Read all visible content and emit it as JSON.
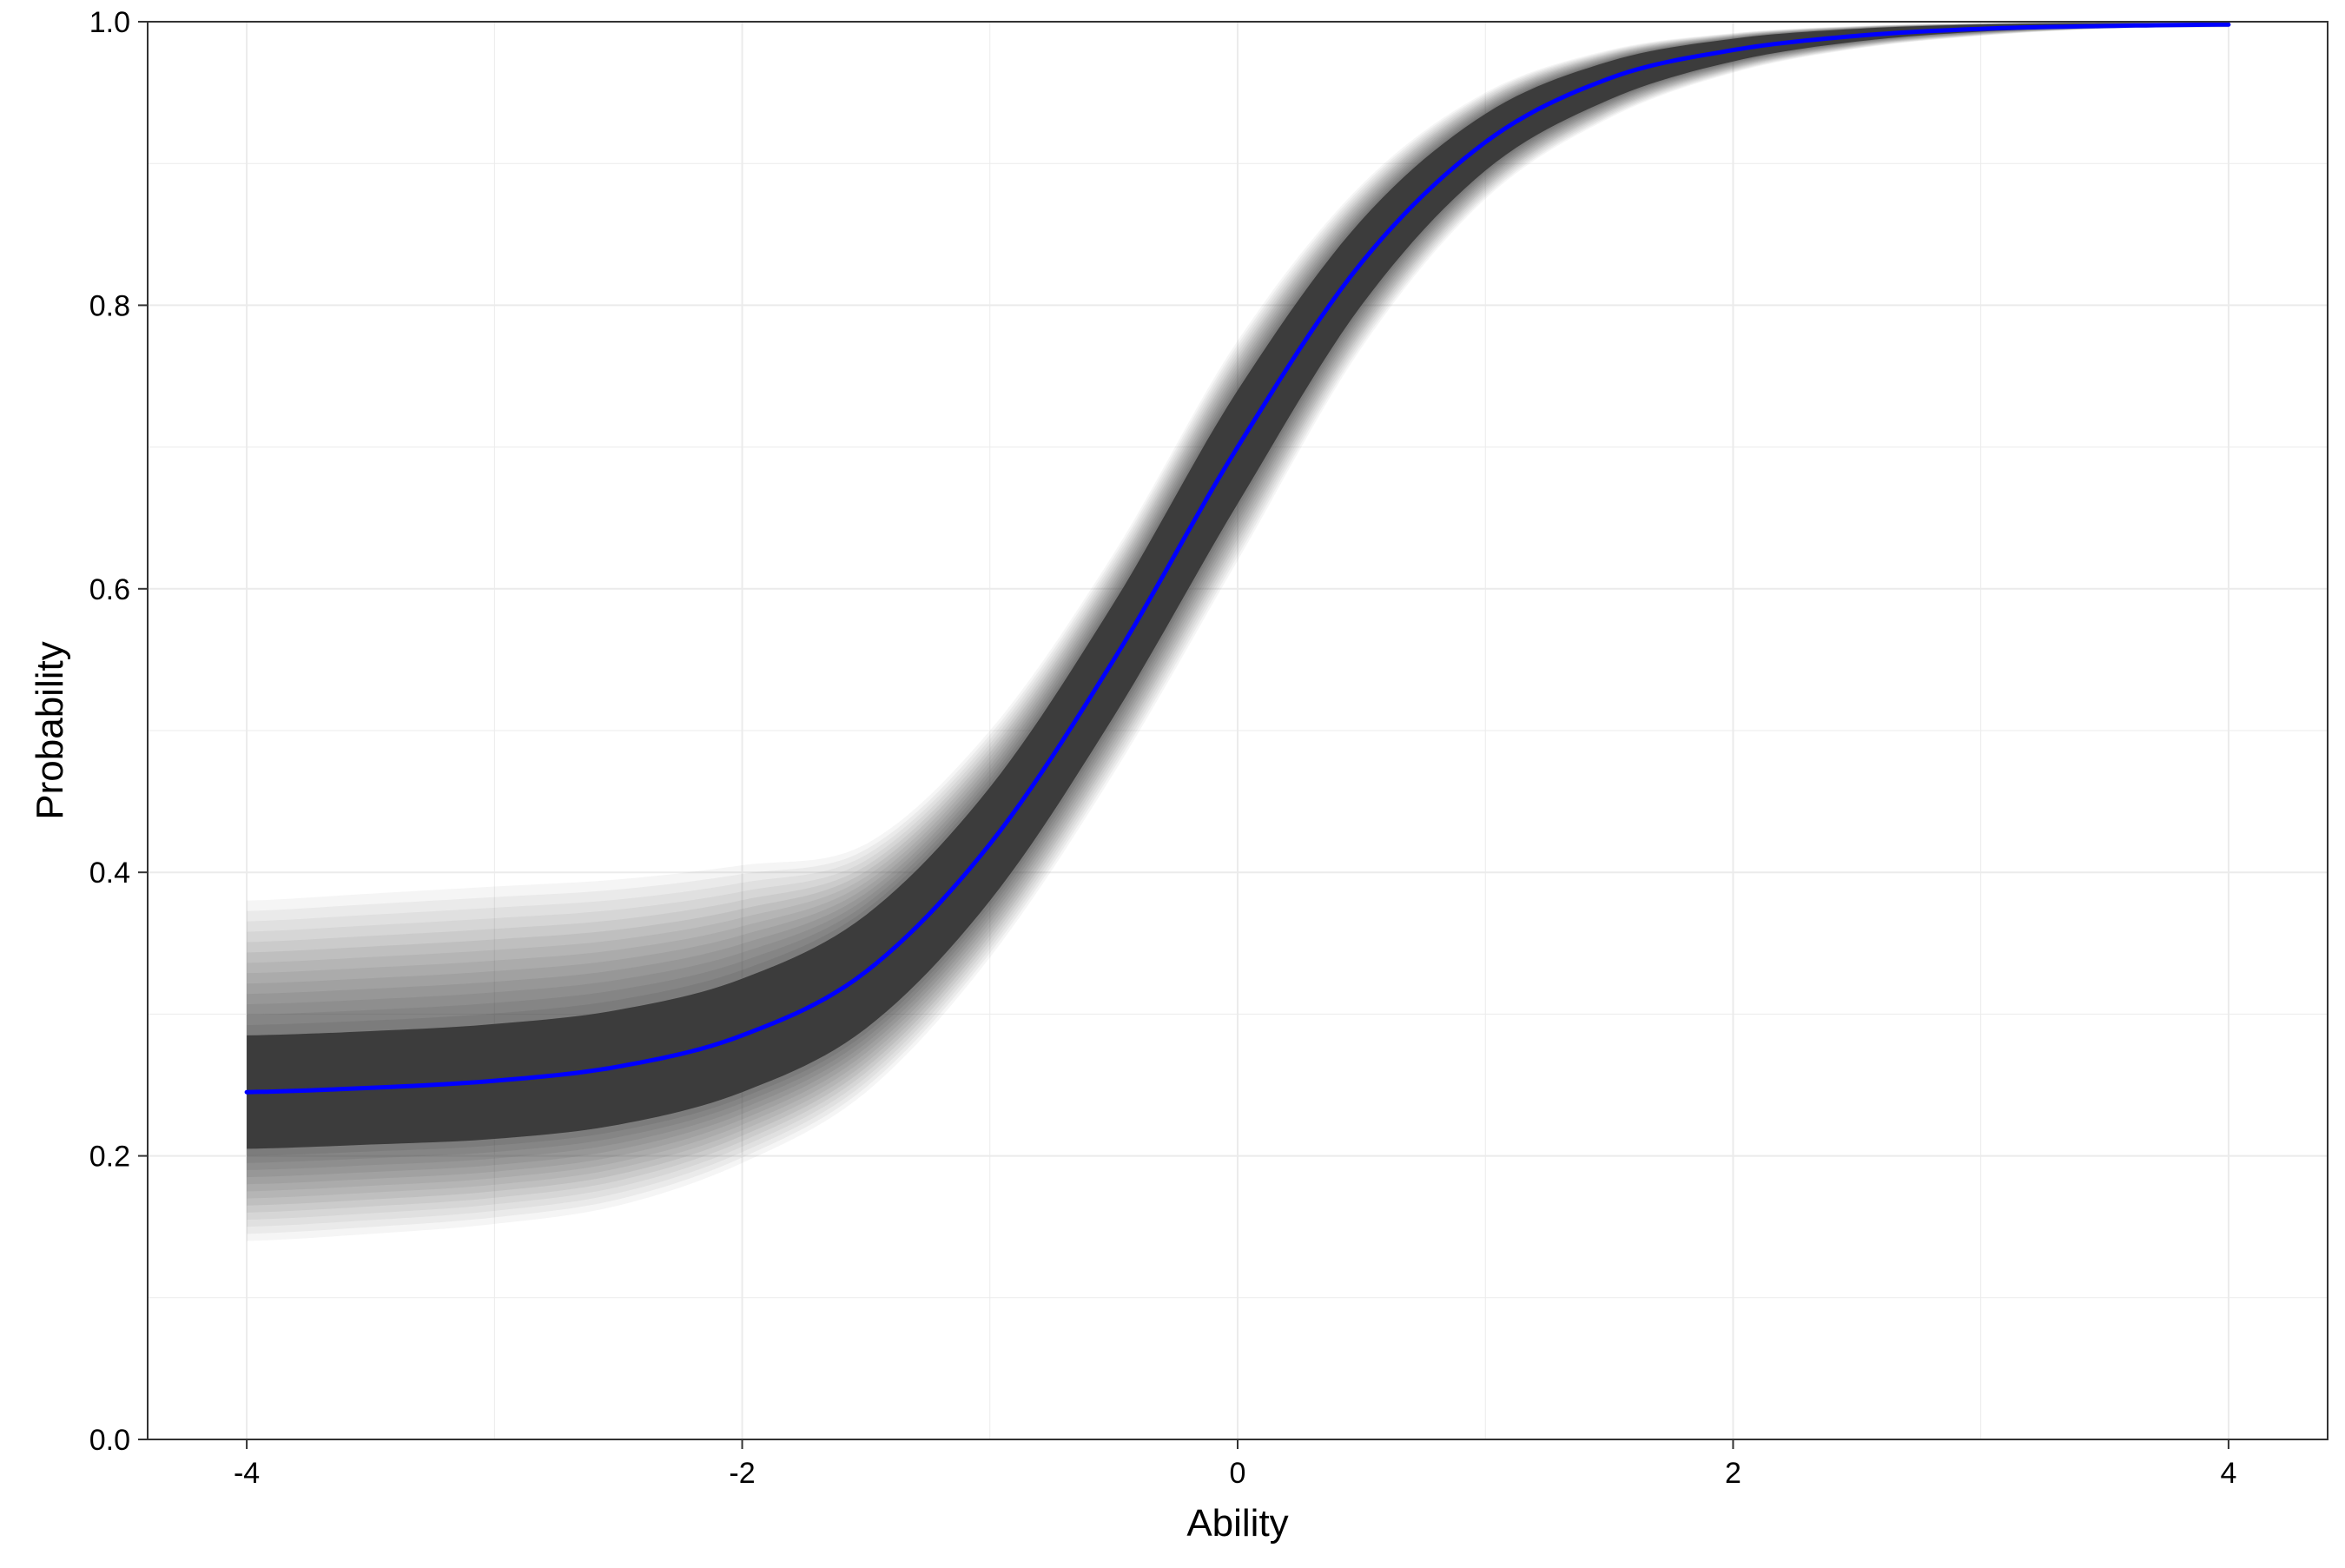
{
  "chart_data": {
    "type": "line",
    "title": "",
    "xlabel": "Ability",
    "ylabel": "Probability",
    "xlim": [
      -4.4,
      4.4
    ],
    "ylim": [
      0.0,
      1.0
    ],
    "xticks": [
      -4,
      -2,
      0,
      2,
      4
    ],
    "xtick_labels": [
      "-4",
      "-2",
      "0",
      "2",
      "4"
    ],
    "yticks": [
      0.0,
      0.2,
      0.4,
      0.6,
      0.8,
      1.0
    ],
    "ytick_labels": [
      "0.0",
      "0.2",
      "0.4",
      "0.6",
      "0.8",
      "1.0"
    ],
    "grid": true,
    "legend": "none",
    "colors": {
      "mean_curve": "#0000ff",
      "posterior_draws": "#3c3c3c",
      "grid": "#ebebeb",
      "panel_border": "#333333"
    },
    "series": [
      {
        "x": [
          -4.0,
          -3.5,
          -3.0,
          -2.5,
          -2.0,
          -1.5,
          -1.0,
          -0.5,
          0.0,
          0.5,
          1.0,
          1.5,
          2.0,
          2.5,
          3.0,
          3.5,
          4.0
        ],
        "values": [
          0.245,
          0.248,
          0.253,
          0.263,
          0.285,
          0.33,
          0.42,
          0.55,
          0.7,
          0.83,
          0.915,
          0.96,
          0.98,
          0.99,
          0.995,
          0.997,
          0.998
        ]
      }
    ],
    "band": {
      "x": [
        -4.0,
        -3.5,
        -3.0,
        -2.5,
        -2.0,
        -1.5,
        -1.0,
        -0.5,
        0.0,
        0.5,
        1.0,
        1.5,
        2.0,
        2.5,
        3.0,
        3.5,
        4.0
      ],
      "core_lower": [
        0.205,
        0.208,
        0.212,
        0.222,
        0.245,
        0.29,
        0.38,
        0.51,
        0.66,
        0.8,
        0.895,
        0.945,
        0.972,
        0.986,
        0.993,
        0.996,
        0.997
      ],
      "core_upper": [
        0.285,
        0.288,
        0.293,
        0.303,
        0.325,
        0.37,
        0.46,
        0.59,
        0.74,
        0.86,
        0.935,
        0.972,
        0.988,
        0.995,
        0.998,
        0.999,
        0.999
      ],
      "outer_lower": [
        0.14,
        0.145,
        0.152,
        0.165,
        0.195,
        0.245,
        0.34,
        0.47,
        0.62,
        0.77,
        0.875,
        0.932,
        0.964,
        0.981,
        0.99,
        0.995,
        0.996
      ],
      "outer_upper": [
        0.38,
        0.385,
        0.39,
        0.395,
        0.405,
        0.42,
        0.5,
        0.625,
        0.775,
        0.885,
        0.95,
        0.98,
        0.992,
        0.997,
        0.999,
        1.0,
        1.0
      ]
    }
  }
}
